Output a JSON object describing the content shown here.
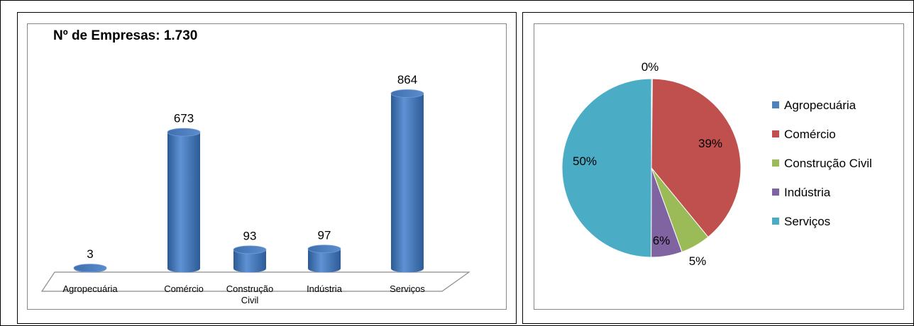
{
  "chart_data": [
    {
      "type": "bar",
      "title": "Nº de Empresas:  1.730",
      "categories": [
        "Agropecuária",
        "Comércio",
        "Construção Civil",
        "Indústria",
        "Serviços"
      ],
      "category_lines": [
        [
          "Agropecuária"
        ],
        [
          "Comércio"
        ],
        [
          "Construção",
          "Civil"
        ],
        [
          "Indústria"
        ],
        [
          "Serviços"
        ]
      ],
      "values": [
        3,
        673,
        93,
        97,
        864
      ],
      "value_labels": [
        "3",
        "673",
        "93",
        "97",
        "864"
      ],
      "ylim": [
        0,
        864
      ],
      "grid": false,
      "style": "3d-cylinder",
      "color": "#4f81bd"
    },
    {
      "type": "pie",
      "labels": [
        "Agropecuária",
        "Comércio",
        "Construção Civil",
        "Indústria",
        "Serviços"
      ],
      "values": [
        3,
        673,
        93,
        97,
        864
      ],
      "percent_labels": [
        "0%",
        "39%",
        "5%",
        "6%",
        "50%"
      ],
      "colors": [
        "#4f81bd",
        "#c0504d",
        "#9bbb59",
        "#8064a2",
        "#4bacc6"
      ],
      "legend_position": "right"
    }
  ]
}
